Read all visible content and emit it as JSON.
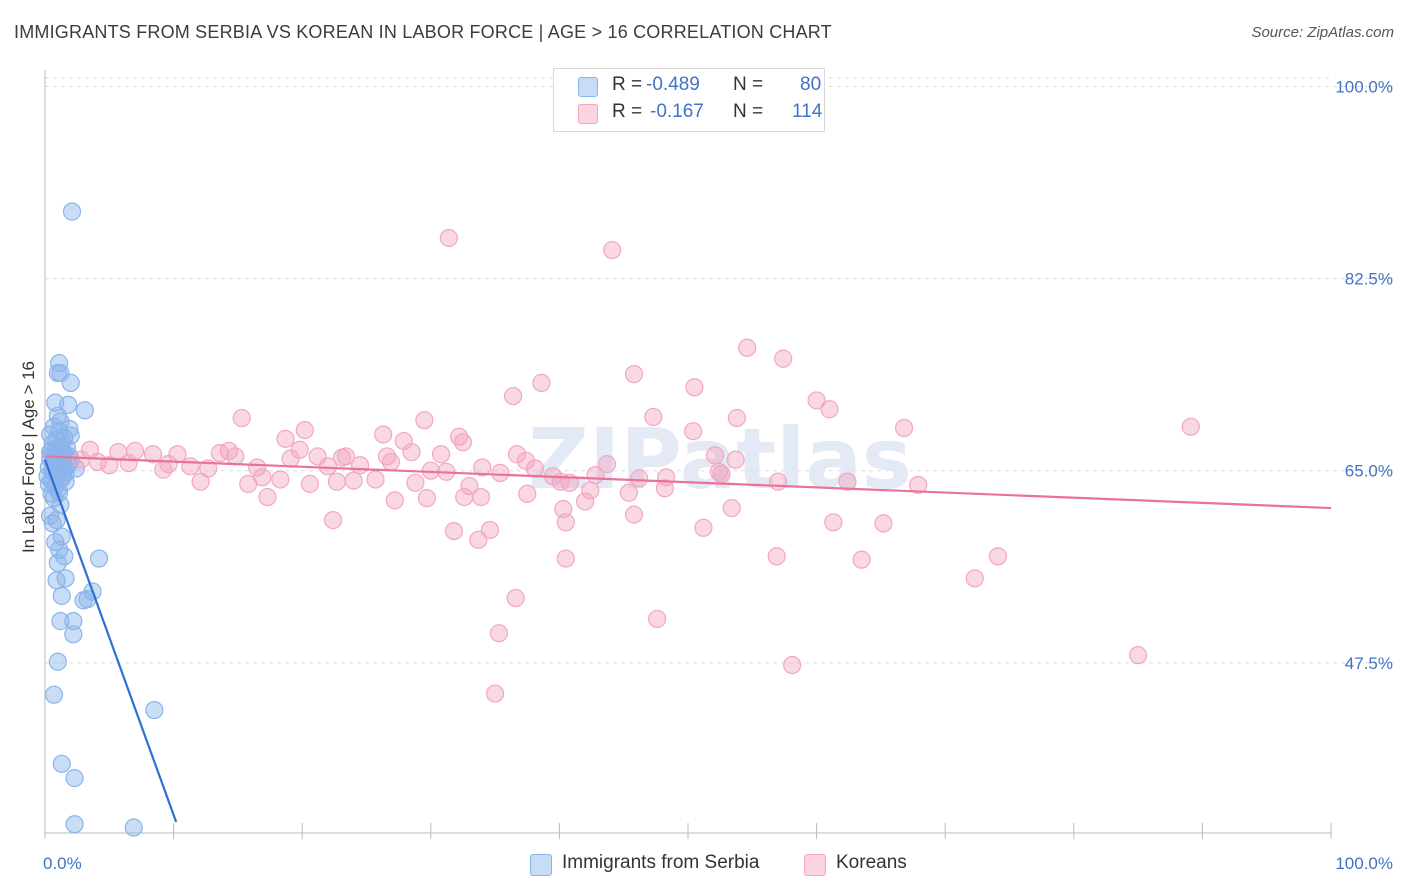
{
  "title": "IMMIGRANTS FROM SERBIA VS KOREAN IN LABOR FORCE | AGE > 16 CORRELATION CHART",
  "source": "Source: ZipAtlas.com",
  "watermark": "ZIPatlas",
  "chart_data": {
    "type": "scatter",
    "title": "IMMIGRANTS FROM SERBIA VS KOREAN IN LABOR FORCE | AGE > 16 CORRELATION CHART",
    "xlabel": "",
    "ylabel": "In Labor Force | Age > 16",
    "xlim": [
      0,
      100
    ],
    "ylim": [
      32,
      101.5
    ],
    "x_tick_labels": [
      "0.0%",
      "100.0%"
    ],
    "y_ticks": [
      47.5,
      65.0,
      82.5,
      100.0
    ],
    "y_tick_labels": [
      "47.5%",
      "65.0%",
      "82.5%",
      "100.0%"
    ],
    "grid": true,
    "legend": [
      {
        "series": "Immigrants from Serbia",
        "r_label": "R =",
        "r_value": "-0.489",
        "n_label": "N =",
        "n_value": "80",
        "color": "#8ab4ea"
      },
      {
        "series": "Koreans",
        "r_label": "R =",
        "r_value": "-0.167",
        "n_label": "N =",
        "n_value": "114",
        "color": "#f2a7c1"
      }
    ],
    "series": [
      {
        "name": "Immigrants from Serbia",
        "color": "#8ab4ea",
        "line_color": "#2e6fd3",
        "trend": {
          "x0": 0.0,
          "y0": 66.0,
          "x1": 10.2,
          "y1": 33.0
        },
        "points": [
          [
            2.1,
            88.6
          ],
          [
            1.1,
            74.8
          ],
          [
            1.0,
            73.9
          ],
          [
            1.2,
            73.9
          ],
          [
            2.0,
            73.0
          ],
          [
            0.8,
            71.2
          ],
          [
            1.8,
            71.0
          ],
          [
            3.1,
            70.5
          ],
          [
            1.0,
            70.0
          ],
          [
            1.2,
            69.5
          ],
          [
            0.7,
            69.0
          ],
          [
            1.9,
            68.8
          ],
          [
            0.4,
            68.3
          ],
          [
            1.5,
            68.0
          ],
          [
            2.0,
            68.2
          ],
          [
            0.6,
            67.5
          ],
          [
            1.3,
            67.3
          ],
          [
            0.9,
            67.0
          ],
          [
            0.5,
            66.8
          ],
          [
            1.5,
            66.5
          ],
          [
            1.9,
            66.3
          ],
          [
            0.4,
            66.1
          ],
          [
            1.0,
            66.0
          ],
          [
            1.4,
            65.8
          ],
          [
            0.8,
            65.6
          ],
          [
            1.8,
            65.5
          ],
          [
            0.3,
            65.3
          ],
          [
            1.2,
            65.1
          ],
          [
            0.6,
            65.0
          ],
          [
            1.6,
            64.8
          ],
          [
            0.9,
            64.6
          ],
          [
            0.2,
            64.5
          ],
          [
            1.3,
            64.3
          ],
          [
            0.5,
            64.1
          ],
          [
            0.8,
            63.6
          ],
          [
            1.1,
            63.0
          ],
          [
            0.7,
            62.5
          ],
          [
            1.2,
            61.9
          ],
          [
            0.9,
            60.5
          ],
          [
            0.6,
            60.2
          ],
          [
            1.3,
            59.0
          ],
          [
            0.8,
            58.5
          ],
          [
            1.1,
            57.8
          ],
          [
            1.5,
            57.2
          ],
          [
            4.2,
            57.0
          ],
          [
            1.0,
            56.6
          ],
          [
            1.6,
            55.2
          ],
          [
            0.9,
            55.0
          ],
          [
            3.7,
            54.0
          ],
          [
            1.3,
            53.6
          ],
          [
            3.3,
            53.3
          ],
          [
            3.0,
            53.2
          ],
          [
            1.2,
            51.3
          ],
          [
            2.2,
            51.3
          ],
          [
            2.2,
            50.1
          ],
          [
            1.0,
            47.6
          ],
          [
            0.7,
            44.6
          ],
          [
            8.5,
            43.2
          ],
          [
            1.3,
            38.3
          ],
          [
            2.3,
            37.0
          ],
          [
            2.3,
            32.8
          ],
          [
            6.9,
            32.5
          ],
          [
            0.4,
            66.7
          ],
          [
            1.7,
            67.1
          ],
          [
            0.3,
            63.8
          ],
          [
            1.4,
            66.2
          ],
          [
            0.9,
            67.8
          ],
          [
            2.4,
            65.2
          ],
          [
            1.6,
            64.0
          ],
          [
            0.5,
            62.9
          ],
          [
            1.1,
            68.6
          ],
          [
            0.8,
            66.4
          ],
          [
            2.0,
            66.0
          ],
          [
            0.6,
            64.9
          ],
          [
            1.9,
            65.7
          ],
          [
            1.0,
            63.3
          ],
          [
            0.4,
            60.9
          ],
          [
            1.4,
            64.5
          ],
          [
            0.7,
            65.9
          ],
          [
            1.2,
            66.9
          ]
        ]
      },
      {
        "name": "Koreans",
        "color": "#f2a7c1",
        "line_color": "#e8729b",
        "trend": {
          "x0": 0.0,
          "y0": 66.3,
          "x1": 100.0,
          "y1": 61.6
        },
        "points": [
          [
            31.4,
            86.2
          ],
          [
            44.1,
            85.1
          ],
          [
            54.6,
            76.2
          ],
          [
            57.4,
            75.2
          ],
          [
            45.8,
            73.8
          ],
          [
            38.6,
            73.0
          ],
          [
            50.5,
            72.6
          ],
          [
            36.4,
            71.8
          ],
          [
            60.0,
            71.4
          ],
          [
            61.0,
            70.6
          ],
          [
            15.3,
            69.8
          ],
          [
            47.3,
            69.9
          ],
          [
            53.8,
            69.8
          ],
          [
            29.5,
            69.6
          ],
          [
            20.2,
            68.7
          ],
          [
            66.8,
            68.9
          ],
          [
            89.1,
            69.0
          ],
          [
            18.7,
            67.9
          ],
          [
            26.3,
            68.3
          ],
          [
            27.9,
            67.7
          ],
          [
            32.2,
            68.1
          ],
          [
            32.5,
            67.6
          ],
          [
            50.4,
            68.6
          ],
          [
            3.5,
            66.9
          ],
          [
            5.7,
            66.7
          ],
          [
            7.0,
            66.8
          ],
          [
            8.4,
            66.5
          ],
          [
            10.3,
            66.5
          ],
          [
            13.6,
            66.6
          ],
          [
            14.3,
            66.8
          ],
          [
            14.8,
            66.3
          ],
          [
            21.2,
            66.3
          ],
          [
            23.1,
            66.2
          ],
          [
            28.5,
            66.7
          ],
          [
            30.8,
            66.5
          ],
          [
            36.7,
            66.5
          ],
          [
            52.1,
            66.4
          ],
          [
            53.7,
            66.0
          ],
          [
            19.1,
            66.1
          ],
          [
            2.8,
            66.0
          ],
          [
            4.1,
            65.8
          ],
          [
            6.5,
            65.7
          ],
          [
            9.6,
            65.6
          ],
          [
            11.3,
            65.4
          ],
          [
            12.7,
            65.2
          ],
          [
            16.5,
            65.3
          ],
          [
            22.0,
            65.4
          ],
          [
            24.5,
            65.5
          ],
          [
            26.9,
            65.8
          ],
          [
            30.0,
            65.0
          ],
          [
            34.0,
            65.3
          ],
          [
            43.7,
            65.6
          ],
          [
            5.0,
            65.5
          ],
          [
            9.2,
            65.1
          ],
          [
            16.9,
            64.4
          ],
          [
            18.3,
            64.2
          ],
          [
            20.6,
            63.8
          ],
          [
            22.7,
            64.0
          ],
          [
            24.0,
            64.1
          ],
          [
            28.8,
            63.9
          ],
          [
            33.0,
            63.6
          ],
          [
            35.4,
            64.8
          ],
          [
            39.5,
            64.5
          ],
          [
            48.3,
            64.4
          ],
          [
            52.6,
            64.7
          ],
          [
            57.0,
            64.0
          ],
          [
            62.4,
            64.0
          ],
          [
            67.9,
            63.7
          ],
          [
            12.1,
            64.0
          ],
          [
            17.3,
            62.6
          ],
          [
            27.2,
            62.3
          ],
          [
            32.6,
            62.6
          ],
          [
            33.9,
            62.6
          ],
          [
            37.5,
            62.9
          ],
          [
            42.4,
            63.2
          ],
          [
            45.4,
            63.0
          ],
          [
            48.2,
            63.4
          ],
          [
            40.8,
            63.9
          ],
          [
            42.0,
            62.2
          ],
          [
            22.4,
            60.5
          ],
          [
            40.3,
            61.5
          ],
          [
            45.8,
            61.0
          ],
          [
            51.2,
            59.8
          ],
          [
            61.3,
            60.3
          ],
          [
            40.5,
            60.3
          ],
          [
            34.6,
            59.6
          ],
          [
            31.8,
            59.5
          ],
          [
            33.7,
            58.7
          ],
          [
            40.5,
            57.0
          ],
          [
            53.4,
            61.6
          ],
          [
            65.2,
            60.2
          ],
          [
            56.9,
            57.2
          ],
          [
            63.5,
            56.9
          ],
          [
            74.1,
            57.2
          ],
          [
            72.3,
            55.2
          ],
          [
            36.6,
            53.4
          ],
          [
            47.6,
            51.5
          ],
          [
            35.3,
            50.2
          ],
          [
            58.1,
            47.3
          ],
          [
            85.0,
            48.2
          ],
          [
            35.0,
            44.7
          ],
          [
            52.4,
            64.9
          ],
          [
            46.2,
            64.3
          ],
          [
            37.4,
            65.9
          ],
          [
            25.7,
            64.2
          ],
          [
            29.7,
            62.5
          ],
          [
            40.1,
            64.0
          ],
          [
            42.8,
            64.6
          ],
          [
            15.8,
            63.8
          ],
          [
            26.6,
            66.3
          ],
          [
            19.8,
            66.9
          ],
          [
            23.4,
            66.3
          ],
          [
            31.2,
            64.9
          ],
          [
            38.1,
            65.2
          ]
        ]
      }
    ]
  }
}
